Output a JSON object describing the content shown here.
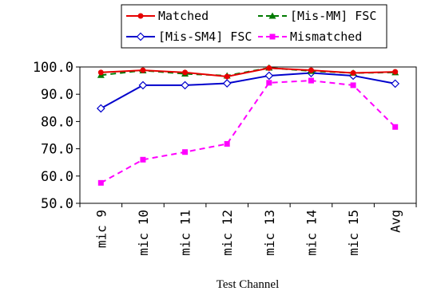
{
  "chart_data": {
    "type": "line",
    "title": "",
    "xlabel": "Test Channel",
    "ylabel": "",
    "categories": [
      "mic 9",
      "mic 10",
      "mic 11",
      "mic 12",
      "mic 13",
      "mic 14",
      "mic 15",
      "Avg"
    ],
    "y_tick_labels": [
      "100.0",
      "90.0",
      "80.0",
      "70.0",
      "60.0",
      "50.0"
    ],
    "ylim": [
      50,
      100
    ],
    "grid": false,
    "legend": "top",
    "series": [
      {
        "name": "Matched",
        "color": "#e60000",
        "marker": "circle",
        "dash": "solid",
        "values": [
          98.0,
          98.8,
          98.0,
          96.5,
          99.6,
          98.8,
          97.8,
          98.2
        ]
      },
      {
        "name": "[Mis-MM] FSC",
        "color": "#007a00",
        "marker": "triangle",
        "dash": "dashed",
        "values": [
          97.0,
          98.7,
          97.5,
          96.8,
          99.7,
          98.5,
          97.8,
          98.0
        ]
      },
      {
        "name": "[Mis-SM4] FSC",
        "color": "#0000cc",
        "marker": "diamond",
        "dash": "solid",
        "values": [
          84.8,
          93.3,
          93.3,
          94.0,
          96.8,
          97.8,
          96.8,
          93.9
        ]
      },
      {
        "name": "Mismatched",
        "color": "#ff00ff",
        "marker": "square",
        "dash": "dashed",
        "values": [
          57.5,
          66.0,
          68.8,
          71.8,
          94.2,
          95.0,
          93.3,
          78.0
        ]
      }
    ]
  }
}
